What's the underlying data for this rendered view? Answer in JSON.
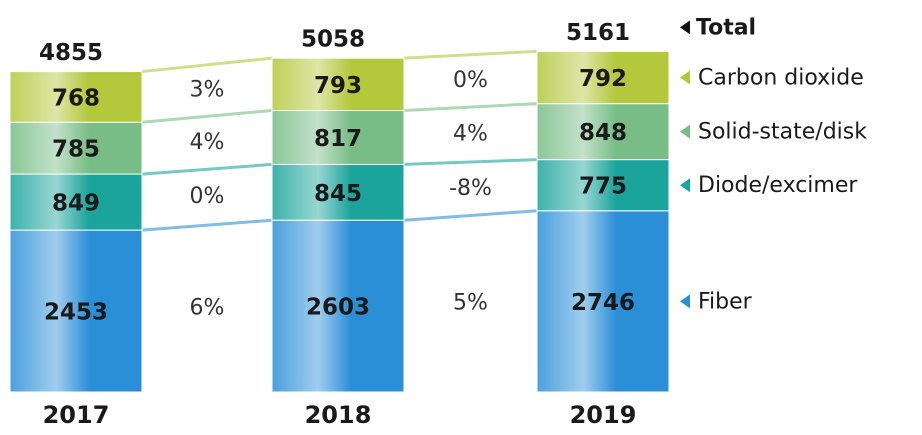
{
  "chart_data": {
    "type": "stacked_bar",
    "categories": [
      "2017",
      "2018",
      "2019"
    ],
    "series": [
      {
        "name": "Fiber",
        "color": "#2b8fd8",
        "values": [
          2453,
          2603,
          2746
        ],
        "growth": [
          6,
          5
        ],
        "growth_labels": [
          "6%",
          "5%"
        ]
      },
      {
        "name": "Diode/excimer",
        "color": "#1aa49c",
        "values": [
          849,
          845,
          775
        ],
        "growth": [
          0,
          -8
        ],
        "growth_labels": [
          "0%",
          "-8%"
        ]
      },
      {
        "name": "Solid-state/disk",
        "color": "#78bd86",
        "values": [
          785,
          817,
          848
        ],
        "growth": [
          4,
          4
        ],
        "growth_labels": [
          "4%",
          "4%"
        ]
      },
      {
        "name": "Carbon dioxide",
        "color": "#b3c83a",
        "values": [
          768,
          793,
          792
        ],
        "growth": [
          3,
          0
        ],
        "growth_labels": [
          "3%",
          "0%"
        ]
      }
    ],
    "totals": [
      4855,
      5058,
      5161
    ],
    "totals_label": "Total"
  }
}
